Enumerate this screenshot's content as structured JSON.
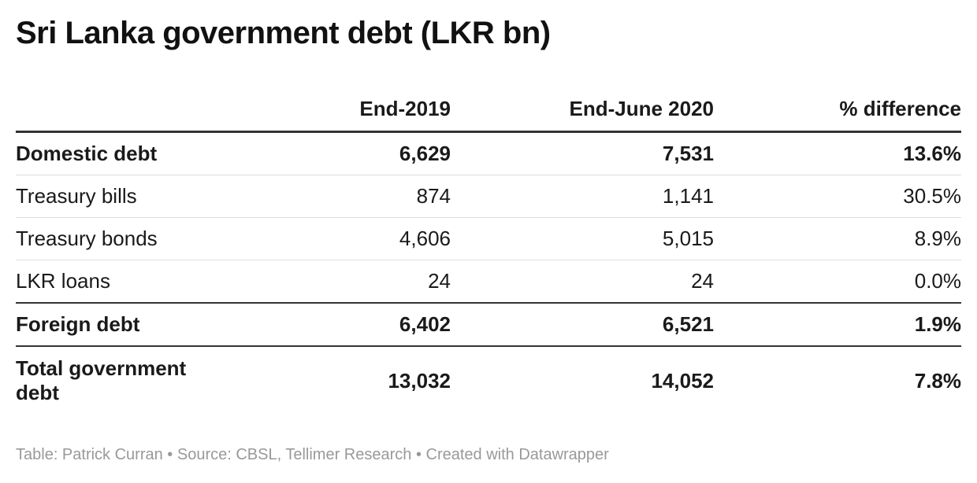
{
  "title": "Sri Lanka government debt (LKR bn)",
  "chart_data": {
    "type": "table",
    "title": "Sri Lanka government debt (LKR bn)",
    "columns": [
      "",
      "End-2019",
      "End-June 2020",
      "% difference"
    ],
    "rows": [
      {
        "label": "Domestic debt",
        "values": [
          "6,629",
          "7,531",
          "13.6%"
        ],
        "bold": true
      },
      {
        "label": "Treasury bills",
        "values": [
          "874",
          "1,141",
          "30.5%"
        ],
        "bold": false
      },
      {
        "label": "Treasury bonds",
        "values": [
          "4,606",
          "5,015",
          "8.9%"
        ],
        "bold": false
      },
      {
        "label": "LKR loans",
        "values": [
          "24",
          "24",
          "0.0%"
        ],
        "bold": false
      },
      {
        "label": "Foreign debt",
        "values": [
          "6,402",
          "6,521",
          "1.9%"
        ],
        "bold": true
      },
      {
        "label": "Total government debt",
        "values": [
          "13,032",
          "14,052",
          "7.8%"
        ],
        "bold": true
      }
    ]
  },
  "footer": "Table: Patrick Curran • Source: CBSL, Tellimer Research • Created with Datawrapper",
  "colors": {
    "text": "#1a1a1a",
    "rule_strong": "#333333",
    "rule_light": "#dddddd",
    "footer_text": "#999999"
  }
}
